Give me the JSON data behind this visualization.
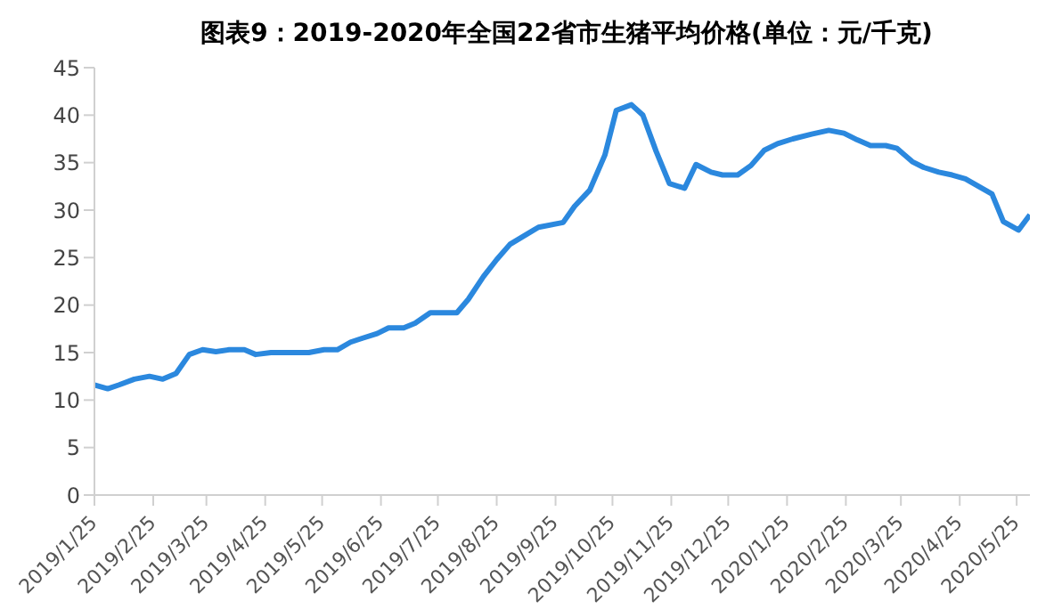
{
  "chart_data": {
    "type": "line",
    "title": "图表9：2019-2020年全国22省市生猪平均价格(单位：元/千克)",
    "x": [
      "2019-01-25",
      "2019-02-01",
      "2019-02-07",
      "2019-02-15",
      "2019-02-23",
      "2019-03-02",
      "2019-03-09",
      "2019-03-16",
      "2019-03-23",
      "2019-03-30",
      "2019-04-06",
      "2019-04-14",
      "2019-04-20",
      "2019-04-28",
      "2019-05-18",
      "2019-05-26",
      "2019-06-02",
      "2019-06-09",
      "2019-06-15",
      "2019-06-23",
      "2019-06-29",
      "2019-07-07",
      "2019-07-13",
      "2019-07-21",
      "2019-08-04",
      "2019-08-10",
      "2019-08-18",
      "2019-08-25",
      "2019-09-01",
      "2019-09-16",
      "2019-09-29",
      "2019-10-05",
      "2019-10-13",
      "2019-10-21",
      "2019-10-27",
      "2019-11-04",
      "2019-11-10",
      "2019-11-17",
      "2019-11-24",
      "2019-12-02",
      "2019-12-08",
      "2019-12-16",
      "2019-12-22",
      "2019-12-30",
      "2020-01-06",
      "2020-01-13",
      "2020-01-20",
      "2020-01-28",
      "2020-02-07",
      "2020-02-16",
      "2020-02-24",
      "2020-03-02",
      "2020-03-09",
      "2020-03-17",
      "2020-03-23",
      "2020-03-31",
      "2020-04-06",
      "2020-04-14",
      "2020-04-21",
      "2020-04-28",
      "2020-05-05",
      "2020-05-12",
      "2020-05-18",
      "2020-05-26",
      "2020-06-01"
    ],
    "series": [
      {
        "color": "#2b88de",
        "values": [
          11.6,
          11.2,
          11.6,
          12.2,
          12.5,
          12.2,
          12.8,
          14.8,
          15.3,
          15.1,
          15.3,
          15.3,
          14.8,
          15.0,
          15.0,
          15.3,
          15.3,
          16.1,
          16.5,
          17.0,
          17.6,
          17.6,
          18.1,
          19.2,
          19.2,
          20.6,
          23.0,
          24.8,
          26.4,
          28.2,
          28.7,
          30.4,
          32.1,
          35.8,
          40.5,
          41.1,
          40.0,
          36.2,
          32.8,
          32.3,
          34.8,
          34.0,
          33.7,
          33.7,
          34.7,
          36.3,
          37.0,
          37.5,
          38.0,
          38.4,
          38.1,
          37.4,
          36.8,
          36.8,
          36.5,
          35.1,
          34.5,
          34.0,
          33.7,
          33.3,
          32.5,
          31.7,
          28.8,
          27.9,
          29.5
        ]
      }
    ],
    "xlim": [
      "2019-01-25",
      "2020-06-01"
    ],
    "xticks": [
      {
        "value": "2019-01-25",
        "label": "2019/1/25"
      },
      {
        "value": "2019-02-25",
        "label": "2019/2/25"
      },
      {
        "value": "2019-03-25",
        "label": "2019/3/25"
      },
      {
        "value": "2019-04-25",
        "label": "2019/4/25"
      },
      {
        "value": "2019-05-25",
        "label": "2019/5/25"
      },
      {
        "value": "2019-06-25",
        "label": "2019/6/25"
      },
      {
        "value": "2019-07-25",
        "label": "2019/7/25"
      },
      {
        "value": "2019-08-25",
        "label": "2019/8/25"
      },
      {
        "value": "2019-09-25",
        "label": "2019/9/25"
      },
      {
        "value": "2019-10-25",
        "label": "2019/10/25"
      },
      {
        "value": "2019-11-25",
        "label": "2019/11/25"
      },
      {
        "value": "2019-12-25",
        "label": "2019/12/25"
      },
      {
        "value": "2020-01-25",
        "label": "2020/1/25"
      },
      {
        "value": "2020-02-25",
        "label": "2020/2/25"
      },
      {
        "value": "2020-03-25",
        "label": "2020/3/25"
      },
      {
        "value": "2020-04-25",
        "label": "2020/4/25"
      },
      {
        "value": "2020-05-25",
        "label": "2020/5/25"
      }
    ],
    "ylim": [
      0,
      45
    ],
    "yticks": [
      0,
      5,
      10,
      15,
      20,
      25,
      30,
      35,
      40,
      45
    ],
    "grid": false,
    "legend": false,
    "marker": "none",
    "line_style": "solid"
  }
}
